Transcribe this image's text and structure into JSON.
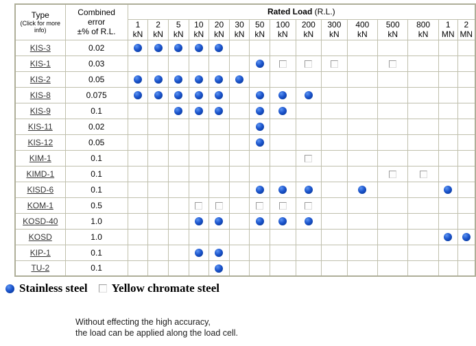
{
  "table": {
    "header": {
      "type_label": "Type",
      "type_sub": "(Click for more info)",
      "combined_error_lines": [
        "Combined",
        "error",
        "±% of R.L."
      ],
      "rated_load_label": "Rated Load",
      "rated_load_suffix": " (R.L.)",
      "columns": [
        {
          "value": "1",
          "unit": "kN"
        },
        {
          "value": "2",
          "unit": "kN"
        },
        {
          "value": "5",
          "unit": "kN"
        },
        {
          "value": "10",
          "unit": "kN"
        },
        {
          "value": "20",
          "unit": "kN"
        },
        {
          "value": "30",
          "unit": "kN"
        },
        {
          "value": "50",
          "unit": "kN"
        },
        {
          "value": "100",
          "unit": "kN"
        },
        {
          "value": "200",
          "unit": "kN"
        },
        {
          "value": "300",
          "unit": "kN"
        },
        {
          "value": "400",
          "unit": "kN"
        },
        {
          "value": "500",
          "unit": "kN"
        },
        {
          "value": "800",
          "unit": "kN"
        },
        {
          "value": "1",
          "unit": "MN"
        },
        {
          "value": "2",
          "unit": "MN"
        }
      ]
    },
    "rows": [
      {
        "type": "KIS-3",
        "error": "0.02",
        "cells": [
          "dot",
          "dot",
          "dot",
          "dot",
          "dot",
          "",
          "",
          "",
          "",
          "",
          "",
          "",
          "",
          "",
          ""
        ]
      },
      {
        "type": "KIS-1",
        "error": "0.03",
        "cells": [
          "",
          "",
          "",
          "",
          "",
          "",
          "dot",
          "square",
          "square",
          "square",
          "",
          "square",
          "",
          "",
          ""
        ]
      },
      {
        "type": "KIS-2",
        "error": "0.05",
        "cells": [
          "dot",
          "dot",
          "dot",
          "dot",
          "dot",
          "dot",
          "",
          "",
          "",
          "",
          "",
          "",
          "",
          "",
          ""
        ]
      },
      {
        "type": "KIS-8",
        "error": "0.075",
        "cells": [
          "dot",
          "dot",
          "dot",
          "dot",
          "dot",
          "",
          "dot",
          "dot",
          "dot",
          "",
          "",
          "",
          "",
          "",
          ""
        ]
      },
      {
        "type": "KIS-9",
        "error": "0.1",
        "cells": [
          "",
          "",
          "dot",
          "dot",
          "dot",
          "",
          "dot",
          "dot",
          "",
          "",
          "",
          "",
          "",
          "",
          ""
        ]
      },
      {
        "type": "KIS-11",
        "error": "0.02",
        "cells": [
          "",
          "",
          "",
          "",
          "",
          "",
          "dot",
          "",
          "",
          "",
          "",
          "",
          "",
          "",
          ""
        ]
      },
      {
        "type": "KIS-12",
        "error": "0.05",
        "cells": [
          "",
          "",
          "",
          "",
          "",
          "",
          "dot",
          "",
          "",
          "",
          "",
          "",
          "",
          "",
          ""
        ]
      },
      {
        "type": "KIM-1",
        "error": "0.1",
        "cells": [
          "",
          "",
          "",
          "",
          "",
          "",
          "",
          "",
          "square",
          "",
          "",
          "",
          "",
          "",
          ""
        ]
      },
      {
        "type": "KIMD-1",
        "error": "0.1",
        "cells": [
          "",
          "",
          "",
          "",
          "",
          "",
          "",
          "",
          "",
          "",
          "",
          "square",
          "square",
          "",
          ""
        ]
      },
      {
        "type": "KISD-6",
        "error": "0.1",
        "cells": [
          "",
          "",
          "",
          "",
          "",
          "",
          "dot",
          "dot",
          "dot",
          "",
          "dot",
          "",
          "",
          "dot",
          ""
        ]
      },
      {
        "type": "KOM-1",
        "error": "0.5",
        "cells": [
          "",
          "",
          "",
          "square",
          "square",
          "",
          "square",
          "square",
          "square",
          "",
          "",
          "",
          "",
          "",
          ""
        ]
      },
      {
        "type": "KOSD-40",
        "error": "1.0",
        "cells": [
          "",
          "",
          "",
          "dot",
          "dot",
          "",
          "dot",
          "dot",
          "dot",
          "",
          "",
          "",
          "",
          "",
          ""
        ]
      },
      {
        "type": "KOSD",
        "error": "1.0",
        "cells": [
          "",
          "",
          "",
          "",
          "",
          "",
          "",
          "",
          "",
          "",
          "",
          "",
          "",
          "dot",
          "dot"
        ]
      },
      {
        "type": "KIP-1",
        "error": "0.1",
        "cells": [
          "",
          "",
          "",
          "dot",
          "dot",
          "",
          "",
          "",
          "",
          "",
          "",
          "",
          "",
          "",
          ""
        ]
      },
      {
        "type": "TU-2",
        "error": "0.1",
        "cells": [
          "",
          "",
          "",
          "",
          "dot",
          "",
          "",
          "",
          "",
          "",
          "",
          "",
          "",
          "",
          ""
        ]
      }
    ]
  },
  "legend": {
    "dot_label": "Stainless steel",
    "square_label": "Yellow chromate steel"
  },
  "note": {
    "lines": [
      "Without effecting the high accuracy,",
      "the load can be applied along the load cell."
    ]
  },
  "colors": {
    "marker_blue": "#1c55cd",
    "table_border": "#bfbfac",
    "link_text": "#333333"
  }
}
